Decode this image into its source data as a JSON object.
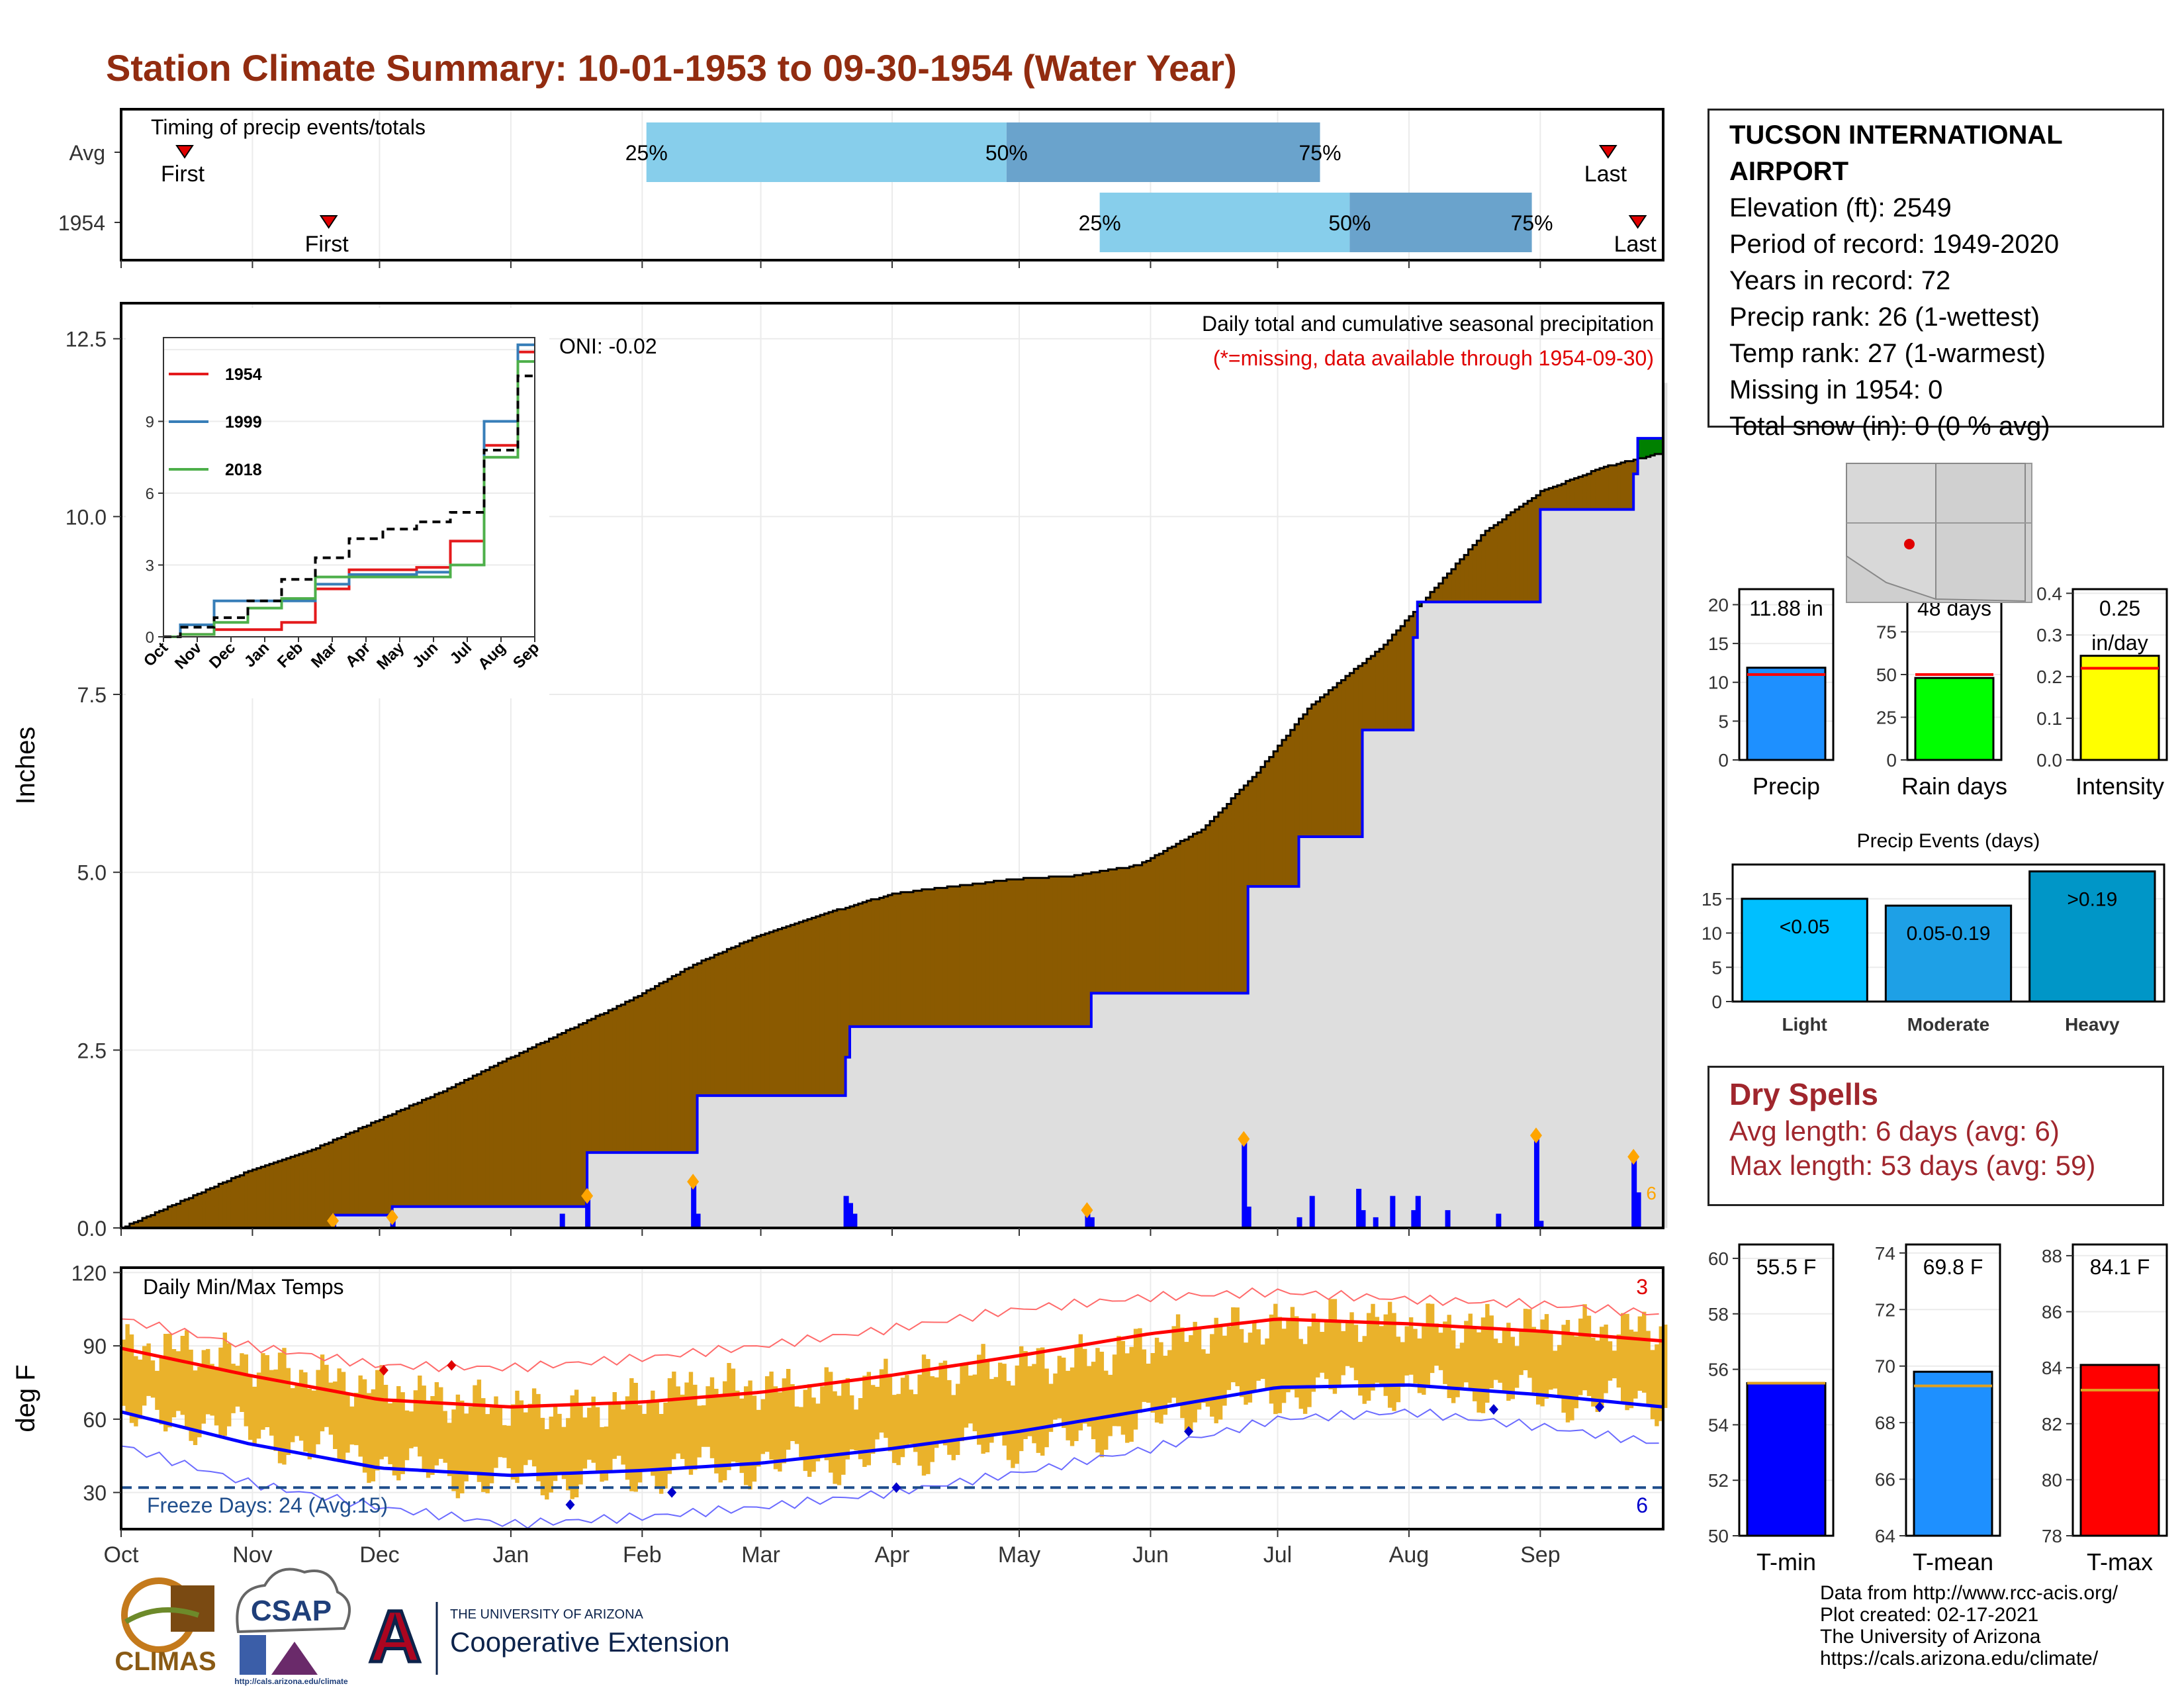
{
  "title": "Station Climate Summary: 10-01-1953 to 09-30-1954 (Water Year)",
  "station": {
    "name": "TUCSON INTERNATIONAL AIRPORT",
    "lines": [
      "Elevation (ft): 2549",
      "Period of record: 1949-2020",
      "Years in record: 72",
      "Precip rank: 26 (1-wettest)",
      "Temp rank: 27 (1-warmest)",
      "Missing in 1954: 0",
      "Total snow (in): 0 (0 % avg)"
    ]
  },
  "dry_spells": {
    "title": "Dry Spells",
    "avg_length": "Avg length: 6 days (avg: 6)",
    "max_length": "Max length: 53 days (avg: 59)"
  },
  "credits": [
    "Data from http://www.rcc-acis.org/",
    "Plot created: 02-17-2021",
    "The University of Arizona",
    "https://cals.arizona.edu/climate/"
  ],
  "logos": {
    "climas": "CLIMAS",
    "csap": "CSAP",
    "csap_url": "http://cals.arizona.edu/climate",
    "ua_small": "THE UNIVERSITY OF ARIZONA",
    "ua_big": "Cooperative Extension"
  },
  "colors": {
    "avg_cumulative_fill": "#8b5a00",
    "excess_fill": "#008000",
    "observed_line": "#0000ff",
    "daily_bar": "#0000ff",
    "temp_range_bar": "#eab22b",
    "max_line": "#ff0000",
    "min_line": "#0000ff",
    "quartile_light": "#87ceeb",
    "quartile_dark": "#6aa3cc"
  },
  "chart_data": [
    {
      "type": "bar",
      "title": "Timing of precip events/totals",
      "categories": [
        "Avg",
        "1954"
      ],
      "x_axis": "day of water year (Oct 1 - Sep 30)",
      "rows": [
        {
          "label": "Avg",
          "first": "Oct 16",
          "p25": "Feb 2",
          "p50": "Apr 28",
          "p75": "Jul 11",
          "last": "Sep 17"
        },
        {
          "label": "1954",
          "first": "Nov 19",
          "p25": "May 20",
          "p50": "Jul 18",
          "p75": "Aug 30",
          "last": "Sep 24"
        }
      ],
      "quartile_labels": [
        "25%",
        "50%",
        "75%"
      ],
      "event_labels": [
        "First",
        "Last"
      ]
    },
    {
      "type": "area",
      "title": "Daily total and cumulative seasonal precipitation",
      "subtitle": "(*=missing, data available through 1954-09-30)",
      "annotation": "ONI: -0.02",
      "ylabel": "Inches",
      "ylim": [
        0,
        13
      ],
      "yticks": [
        "0.0",
        "2.5",
        "5.0",
        "7.5",
        "10.0",
        "12.5"
      ],
      "months": [
        "Oct",
        "Nov",
        "Dec",
        "Jan",
        "Feb",
        "Mar",
        "Apr",
        "May",
        "Jun",
        "Jul",
        "Aug",
        "Sep"
      ],
      "avg_cumulative": {
        "day": [
          0,
          15,
          30,
          45,
          60,
          75,
          92,
          106,
          120,
          135,
          150,
          165,
          182,
          196,
          210,
          225,
          240,
          255,
          268,
          280,
          290,
          298,
          310,
          322,
          335,
          350,
          364
        ],
        "inches": [
          0.0,
          0.4,
          0.8,
          1.1,
          1.5,
          1.9,
          2.4,
          2.8,
          3.2,
          3.7,
          4.1,
          4.4,
          4.7,
          4.8,
          4.9,
          4.95,
          5.1,
          5.6,
          6.4,
          7.3,
          7.8,
          8.2,
          9.0,
          9.8,
          10.35,
          10.7,
          10.9
        ]
      },
      "observed_cumulative": {
        "day": [
          0,
          49,
          50,
          64,
          104,
          110,
          135,
          136,
          161,
          171,
          172,
          175,
          228,
          229,
          238,
          265,
          266,
          278,
          292,
          293,
          305,
          306,
          334,
          335,
          350,
          357,
          358,
          364
        ],
        "inches": [
          0.0,
          0.0,
          0.18,
          0.3,
          0.3,
          1.06,
          1.06,
          1.86,
          1.86,
          2.4,
          2.83,
          2.83,
          2.83,
          3.3,
          3.3,
          3.3,
          4.8,
          5.5,
          5.5,
          7.0,
          8.3,
          8.8,
          8.8,
          10.1,
          10.1,
          10.6,
          11.1,
          11.88
        ]
      },
      "daily_precip": {
        "day": [
          50,
          64,
          104,
          110,
          135,
          136,
          171,
          172,
          173,
          228,
          229,
          265,
          266,
          278,
          281,
          292,
          293,
          296,
          300,
          305,
          306,
          313,
          325,
          334,
          335,
          357,
          358
        ],
        "inches": [
          0.1,
          0.15,
          0.2,
          0.45,
          0.65,
          0.2,
          0.45,
          0.35,
          0.2,
          0.25,
          0.15,
          1.25,
          0.3,
          0.15,
          0.45,
          0.55,
          0.25,
          0.15,
          0.45,
          0.25,
          0.45,
          0.25,
          0.2,
          1.3,
          0.1,
          1.0,
          0.5
        ]
      },
      "markers": [
        "6"
      ]
    },
    {
      "type": "line",
      "title": "",
      "x": [
        "Oct",
        "Nov",
        "Dec",
        "Jan",
        "Feb",
        "Mar",
        "Apr",
        "May",
        "Jun",
        "Jul",
        "Aug",
        "Sep"
      ],
      "ylim": [
        0,
        12.5
      ],
      "yticks": [
        "0",
        "3",
        "6",
        "9"
      ],
      "series": [
        {
          "name": "1954",
          "values": [
            0,
            0.1,
            0.3,
            0.3,
            0.6,
            2.0,
            2.8,
            2.8,
            2.9,
            4.0,
            8.0,
            11.9
          ]
        },
        {
          "name": "1999",
          "values": [
            0,
            0.5,
            1.5,
            1.5,
            1.5,
            2.2,
            2.6,
            2.6,
            2.7,
            3.0,
            9.0,
            12.2
          ]
        },
        {
          "name": "2018",
          "values": [
            0,
            0.1,
            0.6,
            1.2,
            1.6,
            2.5,
            2.5,
            2.5,
            2.5,
            3.0,
            7.5,
            11.5
          ]
        },
        {
          "name": "avg",
          "values": [
            0,
            0.4,
            0.8,
            1.5,
            2.4,
            3.3,
            4.1,
            4.5,
            4.8,
            5.2,
            7.8,
            10.9
          ]
        }
      ]
    },
    {
      "type": "line",
      "title": "Daily Min/Max Temps",
      "ylabel": "deg F",
      "ylim": [
        15,
        122
      ],
      "yticks": [
        "30",
        "60",
        "90",
        "120"
      ],
      "months": [
        "Oct",
        "Nov",
        "Dec",
        "Jan",
        "Feb",
        "Mar",
        "Apr",
        "May",
        "Jun",
        "Jul",
        "Aug",
        "Sep"
      ],
      "freeze_line": 32,
      "freeze_label": "Freeze Days: 24 (Avg:15)",
      "record_high_count": "3",
      "record_low_count": "6",
      "avg_max": {
        "month_day": [
          0,
          30,
          61,
          92,
          123,
          151,
          182,
          212,
          243,
          273,
          304,
          335,
          364
        ],
        "values": [
          89,
          78,
          68,
          65,
          67,
          71,
          78,
          86,
          95,
          101,
          99,
          96,
          92
        ]
      },
      "avg_min": {
        "month_day": [
          0,
          30,
          61,
          92,
          123,
          151,
          182,
          212,
          243,
          273,
          304,
          335,
          364
        ],
        "values": [
          63,
          50,
          40,
          37,
          39,
          42,
          48,
          55,
          64,
          73,
          74,
          70,
          65
        ]
      },
      "record_max": {
        "month_day": [
          0,
          30,
          61,
          92,
          123,
          151,
          182,
          212,
          243,
          273,
          304,
          335,
          364
        ],
        "values": [
          101,
          90,
          82,
          81,
          85,
          90,
          97,
          105,
          110,
          112,
          109,
          107,
          103
        ]
      },
      "record_min": {
        "month_day": [
          0,
          30,
          61,
          92,
          123,
          151,
          182,
          212,
          243,
          273,
          304,
          335,
          364
        ],
        "values": [
          49,
          34,
          24,
          17,
          20,
          24,
          30,
          38,
          48,
          60,
          63,
          57,
          50
        ]
      },
      "observed_max_monthly": [
        89,
        78,
        68,
        63,
        74,
        72,
        80,
        85,
        97,
        101,
        98,
        97
      ],
      "observed_min_monthly": [
        60,
        48,
        37,
        35,
        40,
        42,
        48,
        52,
        66,
        73,
        72,
        67
      ]
    },
    {
      "type": "bar",
      "title": "",
      "categories": [
        "Precip"
      ],
      "values": [
        11.88
      ],
      "average": 11.0,
      "ylim": [
        0,
        22
      ],
      "yticks": [
        "0",
        "5",
        "10",
        "15",
        "20"
      ],
      "label": "11.88 in"
    },
    {
      "type": "bar",
      "title": "",
      "categories": [
        "Rain days"
      ],
      "values": [
        48
      ],
      "average": 50,
      "ylim": [
        0,
        100
      ],
      "yticks": [
        "0",
        "25",
        "50",
        "75",
        "100"
      ],
      "label": "48 days"
    },
    {
      "type": "bar",
      "title": "",
      "categories": [
        "Intensity"
      ],
      "values": [
        0.25
      ],
      "average": 0.22,
      "ylim": [
        0,
        0.41
      ],
      "yticks": [
        "0.0",
        "0.1",
        "0.2",
        "0.3",
        "0.4"
      ],
      "label": "0.25 in/day"
    },
    {
      "type": "bar",
      "title": "Precip Events (days)",
      "categories": [
        "Light",
        "Moderate",
        "Heavy"
      ],
      "values": [
        15,
        14,
        19
      ],
      "bar_labels": [
        "<0.05",
        "0.05-0.19",
        ">0.19"
      ],
      "ylim": [
        0,
        20
      ],
      "yticks": [
        "0",
        "5",
        "10",
        "15"
      ]
    },
    {
      "type": "bar",
      "title": "",
      "categories": [
        "T-min"
      ],
      "values": [
        55.5
      ],
      "average": 55.5,
      "ylim": [
        50,
        60.5
      ],
      "yticks": [
        "50",
        "52",
        "54",
        "56",
        "58",
        "60"
      ],
      "label": "55.5 F"
    },
    {
      "type": "bar",
      "title": "",
      "categories": [
        "T-mean"
      ],
      "values": [
        69.8
      ],
      "average": 69.3,
      "ylim": [
        64,
        74.3
      ],
      "yticks": [
        "64",
        "66",
        "68",
        "70",
        "72",
        "74"
      ],
      "label": "69.8 F"
    },
    {
      "type": "bar",
      "title": "",
      "categories": [
        "T-max"
      ],
      "values": [
        84.1
      ],
      "average": 83.2,
      "ylim": [
        78,
        88.4
      ],
      "yticks": [
        "78",
        "80",
        "82",
        "84",
        "86",
        "88"
      ],
      "label": "84.1 F"
    }
  ]
}
